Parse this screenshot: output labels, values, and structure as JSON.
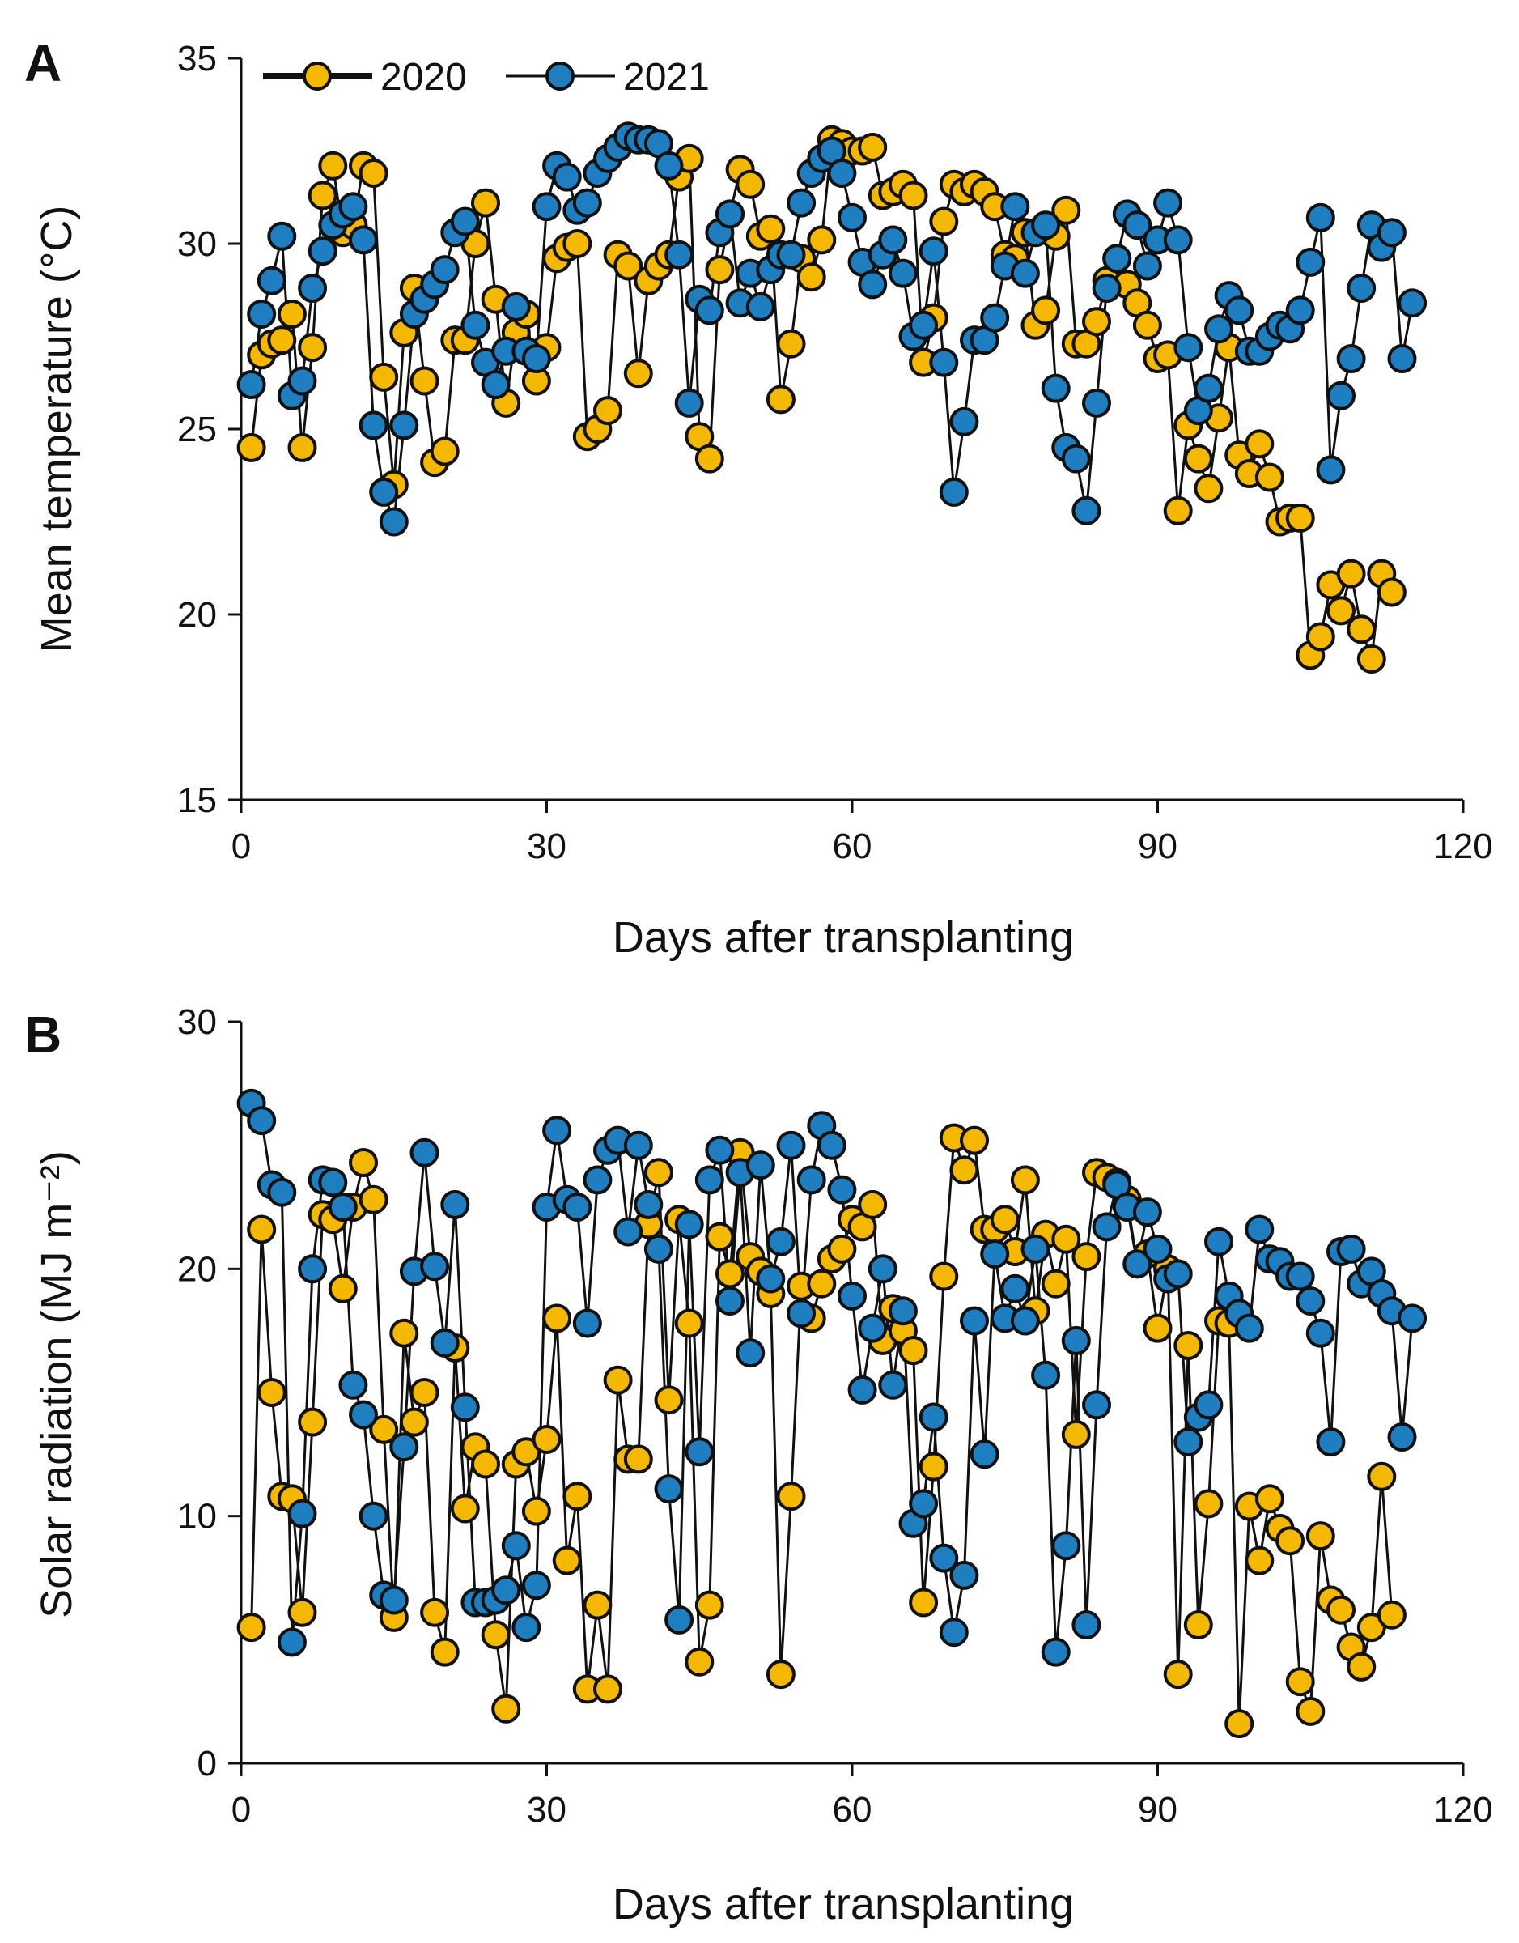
{
  "colors": {
    "series_2020": "#F5B800",
    "series_2021": "#1F7EBF",
    "line": "#111111",
    "axis": "#111111",
    "marker_edge": "#111111"
  },
  "legend": {
    "items": [
      {
        "label": "2020"
      },
      {
        "label": "2021"
      }
    ]
  },
  "chart_data": [
    {
      "type": "line",
      "panel_label": "A",
      "title": "",
      "xlabel": "Days after transplanting",
      "ylabel": "Mean temperature (°C)",
      "xlim": [
        0,
        120
      ],
      "ylim": [
        15,
        35
      ],
      "xticks": [
        0,
        30,
        60,
        90,
        120
      ],
      "yticks": [
        15,
        20,
        25,
        30,
        35
      ],
      "grid": false,
      "legend_position": "top-left",
      "series": [
        {
          "name": "2020",
          "color": "#F5B800",
          "x": [
            1,
            2,
            3,
            4,
            5,
            6,
            7,
            8,
            9,
            10,
            11,
            12,
            13,
            14,
            15,
            16,
            17,
            18,
            19,
            20,
            21,
            22,
            23,
            24,
            25,
            26,
            27,
            28,
            29,
            30,
            31,
            32,
            33,
            34,
            35,
            36,
            37,
            38,
            39,
            40,
            41,
            42,
            43,
            44,
            45,
            46,
            47,
            48,
            49,
            50,
            51,
            52,
            53,
            54,
            55,
            56,
            57,
            58,
            59,
            60,
            61,
            62,
            63,
            64,
            65,
            66,
            67,
            68,
            69,
            70,
            71,
            72,
            73,
            74,
            75,
            76,
            77,
            78,
            79,
            80,
            81,
            82,
            83,
            84,
            85,
            86,
            87,
            88,
            89,
            90,
            91,
            92,
            93,
            94,
            95,
            96,
            97,
            98,
            99,
            100,
            101,
            102,
            103,
            104,
            105,
            106,
            107,
            108,
            109,
            110,
            111,
            112,
            113
          ],
          "values": [
            24.5,
            27,
            27.3,
            27.4,
            28.1,
            24.5,
            27.2,
            31.3,
            32.1,
            30.3,
            30.5,
            32.1,
            31.9,
            26.4,
            23.5,
            27.6,
            28.8,
            26.3,
            24.1,
            24.4,
            27.4,
            27.4,
            30.0,
            31.1,
            28.5,
            25.7,
            27.6,
            28.1,
            26.3,
            27.2,
            29.6,
            29.9,
            30.0,
            24.8,
            25.0,
            25.5,
            29.7,
            29.4,
            26.5,
            29.0,
            29.4,
            29.7,
            31.8,
            32.3,
            24.8,
            24.2,
            29.3,
            30.8,
            32.0,
            31.6,
            30.2,
            30.4,
            25.8,
            27.3,
            29.6,
            29.1,
            30.1,
            32.8,
            32.7,
            32.5,
            32.5,
            32.6,
            31.3,
            31.4,
            31.6,
            31.3,
            26.8,
            28.0,
            30.6,
            31.6,
            31.4,
            31.6,
            31.4,
            31.0,
            29.7,
            29.6,
            30.3,
            27.8,
            28.2,
            30.2,
            30.9,
            27.3,
            27.3,
            27.9,
            29.0,
            29.6,
            28.9,
            28.4,
            27.8,
            26.9,
            27.0,
            22.8,
            25.1,
            24.2,
            23.4,
            25.3,
            27.2,
            24.3,
            23.8,
            24.6,
            23.7,
            22.5,
            22.6,
            22.6,
            18.9,
            19.4,
            20.8,
            20.1,
            21.1,
            19.6,
            18.8,
            21.1,
            20.6
          ]
        },
        {
          "name": "2021",
          "color": "#1F7EBF",
          "x": [
            1,
            2,
            3,
            4,
            5,
            6,
            7,
            8,
            9,
            10,
            11,
            12,
            13,
            14,
            15,
            16,
            17,
            18,
            19,
            20,
            21,
            22,
            23,
            24,
            25,
            26,
            27,
            28,
            29,
            30,
            31,
            32,
            33,
            34,
            35,
            36,
            37,
            38,
            39,
            40,
            41,
            42,
            43,
            44,
            45,
            46,
            47,
            48,
            49,
            50,
            51,
            52,
            53,
            54,
            55,
            56,
            57,
            58,
            59,
            60,
            61,
            62,
            63,
            64,
            65,
            66,
            67,
            68,
            69,
            70,
            71,
            72,
            73,
            74,
            75,
            76,
            77,
            78,
            79,
            80,
            81,
            82,
            83,
            84,
            85,
            86,
            87,
            88,
            89,
            90,
            91,
            92,
            93,
            94,
            95,
            96,
            97,
            98,
            99,
            100,
            101,
            102,
            103,
            104,
            105,
            106,
            107,
            108,
            109,
            110,
            111,
            112,
            113,
            114,
            115
          ],
          "values": [
            26.2,
            28.1,
            29.0,
            30.2,
            25.9,
            26.3,
            28.8,
            29.8,
            30.5,
            30.8,
            31.0,
            30.1,
            25.1,
            23.3,
            22.5,
            25.1,
            28.1,
            28.5,
            28.9,
            29.3,
            30.3,
            30.6,
            27.8,
            26.8,
            26.2,
            27.1,
            28.3,
            27.1,
            26.9,
            31.0,
            32.1,
            31.8,
            30.9,
            31.1,
            31.9,
            32.3,
            32.6,
            32.9,
            32.8,
            32.8,
            32.7,
            32.1,
            29.7,
            25.7,
            28.5,
            28.2,
            30.3,
            30.8,
            28.4,
            29.2,
            28.3,
            29.3,
            29.7,
            29.7,
            31.1,
            31.9,
            32.3,
            32.5,
            31.9,
            30.7,
            29.5,
            28.9,
            29.7,
            30.1,
            29.2,
            27.5,
            27.8,
            29.8,
            26.8,
            23.3,
            25.2,
            27.4,
            27.4,
            28.0,
            29.4,
            31.0,
            29.2,
            30.3,
            30.5,
            26.1,
            24.5,
            24.2,
            22.8,
            25.7,
            28.8,
            29.6,
            30.8,
            30.5,
            29.4,
            30.1,
            31.1,
            30.1,
            27.2,
            25.5,
            26.1,
            27.7,
            28.6,
            28.2,
            27.1,
            27.1,
            27.5,
            27.8,
            27.7,
            28.2,
            29.5,
            30.7,
            23.9,
            25.9,
            26.9,
            28.8,
            30.5,
            29.9,
            30.3,
            26.9,
            28.4
          ]
        }
      ]
    },
    {
      "type": "line",
      "panel_label": "B",
      "title": "",
      "xlabel": "Days after transplanting",
      "ylabel": "Solar radiation (MJ m⁻²)",
      "xlim": [
        0,
        120
      ],
      "ylim": [
        0,
        30
      ],
      "xticks": [
        0,
        30,
        60,
        90,
        120
      ],
      "yticks": [
        0,
        10,
        20,
        30
      ],
      "grid": false,
      "legend_position": "none",
      "series": [
        {
          "name": "2020",
          "color": "#F5B800",
          "x": [
            1,
            2,
            3,
            4,
            5,
            6,
            7,
            8,
            9,
            10,
            11,
            12,
            13,
            14,
            15,
            16,
            17,
            18,
            19,
            20,
            21,
            22,
            23,
            24,
            25,
            26,
            27,
            28,
            29,
            30,
            31,
            32,
            33,
            34,
            35,
            36,
            37,
            38,
            39,
            40,
            41,
            42,
            43,
            44,
            45,
            46,
            47,
            48,
            49,
            50,
            51,
            52,
            53,
            54,
            55,
            56,
            57,
            58,
            59,
            60,
            61,
            62,
            63,
            64,
            65,
            66,
            67,
            68,
            69,
            70,
            71,
            72,
            73,
            74,
            75,
            76,
            77,
            78,
            79,
            80,
            81,
            82,
            83,
            84,
            85,
            86,
            87,
            88,
            89,
            90,
            91,
            92,
            93,
            94,
            95,
            96,
            97,
            98,
            99,
            100,
            101,
            102,
            103,
            104,
            105,
            106,
            107,
            108,
            109,
            110,
            111,
            112,
            113
          ],
          "values": [
            5.5,
            21.6,
            15.0,
            10.8,
            10.7,
            6.1,
            13.8,
            22.2,
            22.0,
            19.2,
            22.5,
            24.3,
            22.8,
            13.5,
            5.9,
            17.4,
            13.8,
            15.0,
            6.1,
            4.5,
            16.8,
            10.3,
            12.8,
            12.1,
            5.2,
            2.2,
            12.1,
            12.6,
            10.2,
            13.1,
            18.0,
            8.2,
            10.8,
            3.0,
            6.4,
            3.0,
            15.5,
            12.3,
            12.3,
            21.8,
            23.9,
            14.7,
            22.0,
            17.8,
            4.1,
            6.4,
            21.3,
            19.8,
            24.7,
            20.5,
            19.9,
            19.0,
            3.6,
            10.8,
            19.3,
            18.0,
            19.4,
            20.4,
            20.8,
            22.0,
            21.7,
            22.6,
            17.1,
            18.4,
            17.5,
            16.7,
            6.5,
            12.0,
            19.7,
            25.3,
            24.0,
            25.2,
            21.6,
            21.6,
            22.0,
            20.7,
            23.6,
            18.3,
            21.4,
            19.4,
            21.2,
            13.3,
            20.5,
            23.9,
            23.7,
            23.5,
            22.8,
            20.2,
            20.6,
            17.6,
            20.0,
            3.6,
            16.9,
            5.6,
            10.5,
            17.9,
            17.8,
            1.6,
            10.4,
            8.2,
            10.7,
            9.5,
            9.0,
            3.3,
            2.1,
            9.2,
            6.6,
            6.2,
            4.7,
            3.9,
            5.5,
            11.6,
            6.0
          ]
        },
        {
          "name": "2021",
          "color": "#1F7EBF",
          "x": [
            1,
            2,
            3,
            4,
            5,
            6,
            7,
            8,
            9,
            10,
            11,
            12,
            13,
            14,
            15,
            16,
            17,
            18,
            19,
            20,
            21,
            22,
            23,
            24,
            25,
            26,
            27,
            28,
            29,
            30,
            31,
            32,
            33,
            34,
            35,
            36,
            37,
            38,
            39,
            40,
            41,
            42,
            43,
            44,
            45,
            46,
            47,
            48,
            49,
            50,
            51,
            52,
            53,
            54,
            55,
            56,
            57,
            58,
            59,
            60,
            61,
            62,
            63,
            64,
            65,
            66,
            67,
            68,
            69,
            70,
            71,
            72,
            73,
            74,
            75,
            76,
            77,
            78,
            79,
            80,
            81,
            82,
            83,
            84,
            85,
            86,
            87,
            88,
            89,
            90,
            91,
            92,
            93,
            94,
            95,
            96,
            97,
            98,
            99,
            100,
            101,
            102,
            103,
            104,
            105,
            106,
            107,
            108,
            109,
            110,
            111,
            112,
            113,
            114,
            115
          ],
          "values": [
            26.7,
            26.0,
            23.4,
            23.1,
            4.9,
            10.1,
            20.0,
            23.6,
            23.5,
            22.5,
            15.3,
            14.1,
            10.0,
            6.8,
            6.6,
            12.8,
            19.9,
            24.7,
            20.1,
            17.0,
            22.6,
            14.4,
            6.5,
            6.5,
            6.6,
            7.0,
            8.8,
            5.5,
            7.2,
            22.5,
            25.6,
            22.8,
            22.5,
            17.8,
            23.6,
            24.8,
            25.2,
            21.5,
            25.0,
            22.6,
            20.8,
            11.1,
            5.8,
            21.8,
            12.6,
            23.6,
            24.8,
            18.7,
            23.9,
            16.6,
            24.2,
            19.6,
            21.1,
            25.0,
            18.2,
            23.6,
            25.8,
            25.0,
            23.2,
            18.9,
            15.1,
            17.6,
            20.0,
            15.3,
            18.3,
            9.7,
            10.5,
            14.0,
            8.3,
            5.3,
            7.6,
            17.9,
            12.5,
            20.6,
            18.0,
            19.2,
            17.9,
            20.8,
            15.7,
            4.5,
            8.8,
            17.1,
            5.6,
            14.5,
            21.7,
            23.4,
            22.5,
            20.2,
            22.3,
            20.8,
            19.6,
            19.8,
            13.0,
            14.0,
            14.5,
            21.1,
            18.9,
            18.2,
            17.6,
            21.6,
            20.4,
            20.3,
            19.7,
            19.7,
            18.7,
            17.4,
            13.0,
            20.7,
            20.8,
            19.4,
            19.9,
            19.0,
            18.3,
            13.2,
            18.0
          ]
        }
      ]
    }
  ]
}
